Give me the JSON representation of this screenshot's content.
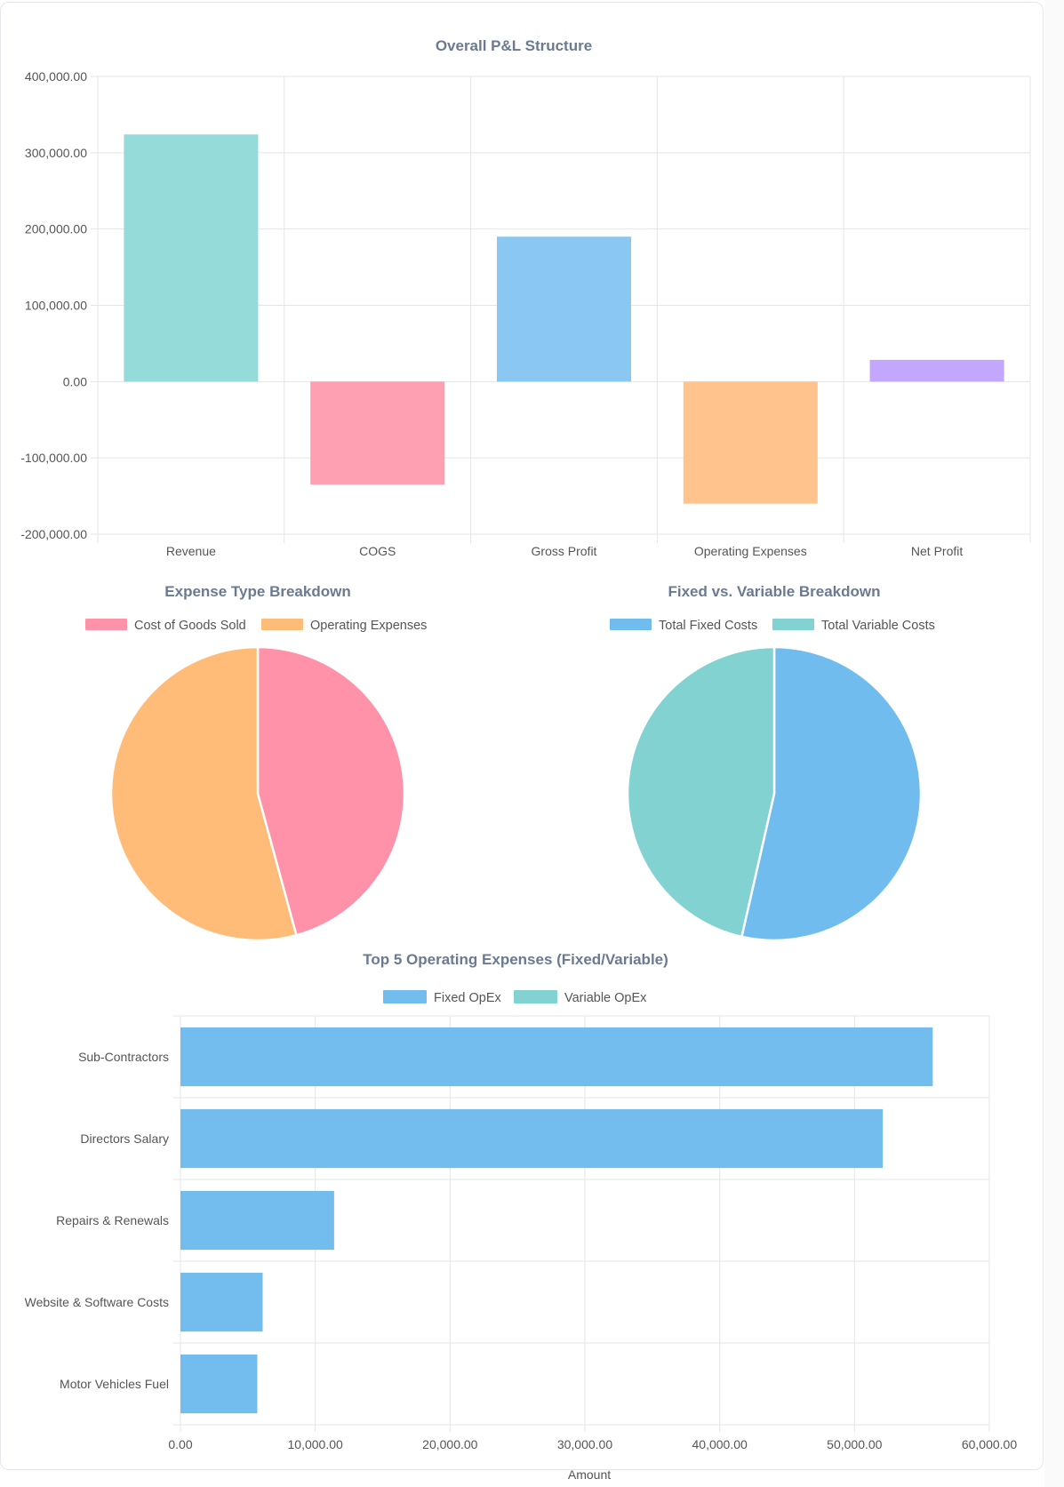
{
  "colors": {
    "teal": "#94dbd9",
    "pink": "#ff9fb2",
    "blue": "#8ac7f2",
    "orange": "#ffc48d",
    "purple": "#c3a7fe",
    "pie_pink": "#ff92a9",
    "pie_orange": "#ffbc78",
    "pie_blue": "#71bcef",
    "pie_teal": "#82d2d2",
    "hbar_blue": "#72bcee",
    "grid": "#e5e5e5",
    "title": "#6b7a90"
  },
  "chart_data": [
    {
      "id": "pl",
      "type": "bar",
      "title": "Overall P&L Structure",
      "categories": [
        "Revenue",
        "COGS",
        "Gross Profit",
        "Operating Expenses",
        "Net Profit"
      ],
      "values": [
        324000,
        -135000,
        190000,
        -160000,
        28500
      ],
      "bar_colors": [
        "#94dbd9",
        "#ff9fb2",
        "#8ac7f2",
        "#ffc48d",
        "#c3a7fe"
      ],
      "ylim": [
        -200000,
        400000
      ],
      "yticks": [
        400000,
        300000,
        200000,
        100000,
        0,
        -100000,
        -200000
      ],
      "ytick_labels": [
        "400,000.00",
        "300,000.00",
        "200,000.00",
        "100,000.00",
        "0.00",
        "-100,000.00",
        "-200,000.00"
      ],
      "xlabel": "",
      "ylabel": "",
      "grid": true
    },
    {
      "id": "expense_type",
      "type": "pie",
      "title": "Expense Type Breakdown",
      "labels": [
        "Cost of Goods Sold",
        "Operating Expenses"
      ],
      "values": [
        135000,
        160000
      ],
      "colors": [
        "#ff92a9",
        "#ffbc78"
      ],
      "legend": "top"
    },
    {
      "id": "fixed_variable",
      "type": "pie",
      "title": "Fixed vs. Variable Breakdown",
      "labels": [
        "Total Fixed Costs",
        "Total Variable Costs"
      ],
      "values": [
        158000,
        137000
      ],
      "colors": [
        "#71bcef",
        "#82d2d2"
      ],
      "legend": "top"
    },
    {
      "id": "top5",
      "type": "bar",
      "orientation": "horizontal",
      "title": "Top 5 Operating Expenses (Fixed/Variable)",
      "categories": [
        "Sub-Contractors",
        "Directors Salary",
        "Repairs & Renewals",
        "Website & Software Costs",
        "Motor Vehicles Fuel"
      ],
      "series": [
        {
          "name": "Fixed OpEx",
          "color": "#72bcee",
          "values": [
            55800,
            52100,
            11400,
            6100,
            5700
          ]
        },
        {
          "name": "Variable OpEx",
          "color": "#82d2d2",
          "values": [
            0,
            0,
            0,
            0,
            0
          ]
        }
      ],
      "xlim": [
        0,
        60000
      ],
      "xticks": [
        0,
        10000,
        20000,
        30000,
        40000,
        50000,
        60000
      ],
      "xtick_labels": [
        "0.00",
        "10,000.00",
        "20,000.00",
        "30,000.00",
        "40,000.00",
        "50,000.00",
        "60,000.00"
      ],
      "xlabel": "Amount",
      "legend": "top",
      "grid": true
    }
  ]
}
